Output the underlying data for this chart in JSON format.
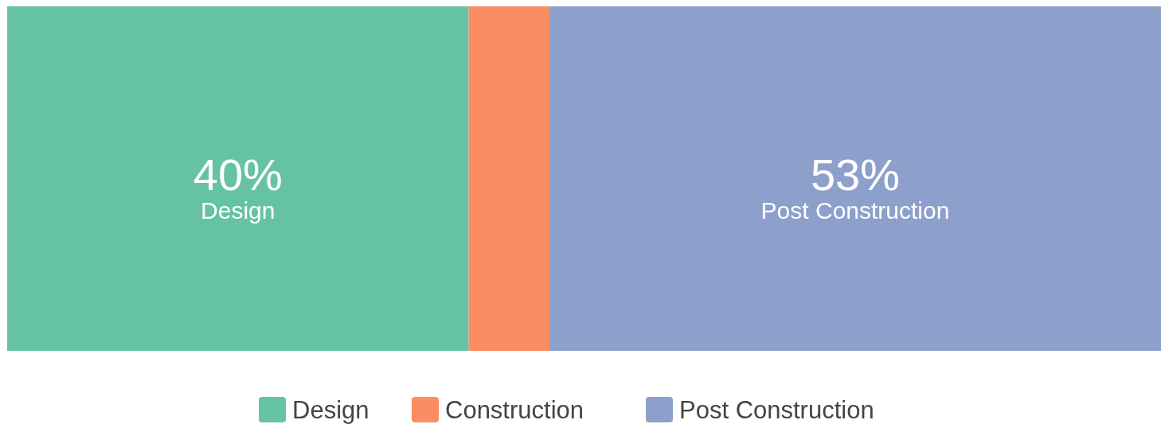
{
  "chart_data": {
    "type": "bar",
    "stacked": true,
    "orientation": "horizontal",
    "categories": [
      null
    ],
    "xlim": [
      0,
      100
    ],
    "legend": "bottom",
    "series": [
      {
        "name": "Design",
        "color": "#66c2a5",
        "values": [
          40
        ],
        "value_labels": [
          "40%"
        ]
      },
      {
        "name": "Construction",
        "color": "#fc8d62",
        "values": [
          7
        ],
        "value_labels": [
          null
        ]
      },
      {
        "name": "Post Construction",
        "color": "#8da0cb",
        "values": [
          53
        ],
        "value_labels": [
          "53%"
        ]
      }
    ]
  }
}
